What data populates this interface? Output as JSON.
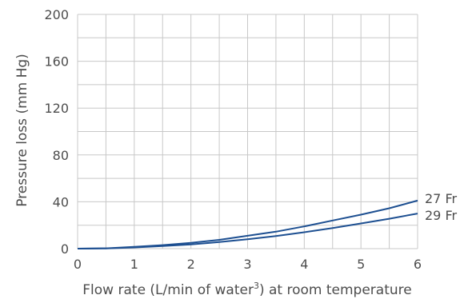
{
  "chart_data": {
    "type": "line",
    "xlabel": "Flow rate (L/min of water",
    "xlabel_superscript": "3",
    "xlabel_suffix": ") at room temperature",
    "ylabel": "Pressure loss (mm Hg)",
    "xlim": [
      0,
      6
    ],
    "ylim": [
      0,
      200
    ],
    "x_ticks": [
      0,
      1,
      2,
      3,
      4,
      5,
      6
    ],
    "y_ticks": [
      0,
      40,
      80,
      120,
      160,
      200
    ],
    "grid": true,
    "legend": "labels at line ends (right)",
    "series_color": "#1d4f91",
    "series": [
      {
        "name": "27 Fr",
        "x": [
          0,
          0.5,
          1,
          1.5,
          2,
          2.5,
          3,
          3.5,
          4,
          4.5,
          5,
          5.5,
          6
        ],
        "y": [
          0,
          0.3,
          1.5,
          3,
          5,
          7.5,
          11,
          14.5,
          19,
          24,
          29,
          34.5,
          41
        ]
      },
      {
        "name": "29 Fr",
        "x": [
          0,
          0.5,
          1,
          1.5,
          2,
          2.5,
          3,
          3.5,
          4,
          4.5,
          5,
          5.5,
          6
        ],
        "y": [
          0,
          0.2,
          1,
          2.2,
          3.6,
          5.6,
          8,
          10.8,
          14,
          17.6,
          21.5,
          25.5,
          30
        ]
      }
    ]
  }
}
